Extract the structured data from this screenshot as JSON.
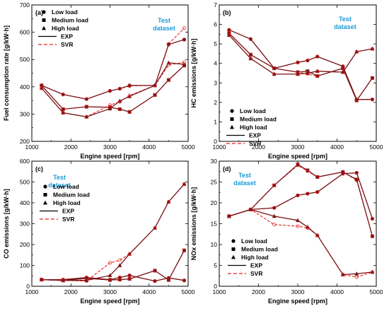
{
  "chart_data": [
    {
      "type": "line",
      "panel": "(a)",
      "annotation": [
        "Test",
        "dataset"
      ],
      "xlabel": "Engine speed [rpm]",
      "ylabel": "Fuel consumption rate [g/kW·h]",
      "xlim": [
        1000,
        5000
      ],
      "ylim": [
        200,
        700
      ],
      "xticks": [
        1000,
        2000,
        3000,
        4000,
        5000
      ],
      "yticks": [
        200,
        300,
        400,
        500,
        600,
        700
      ],
      "legend_position": "top-left",
      "x": [
        1250,
        1800,
        2400,
        3000,
        3250,
        3500,
        4150,
        4500,
        4900
      ],
      "series": [
        {
          "name": "Low load",
          "marker": "circle",
          "exp": [
            405,
            372,
            355,
            385,
            393,
            405,
            405,
            555,
            573
          ],
          "svr": [
            405,
            372,
            355,
            385,
            393,
            403,
            405,
            557,
            615
          ]
        },
        {
          "name": "Medium load",
          "marker": "square",
          "exp": [
            405,
            318,
            327,
            325,
            318,
            308,
            370,
            425,
            478
          ],
          "svr": [
            405,
            318,
            327,
            325,
            318,
            308,
            370,
            425,
            478
          ]
        },
        {
          "name": "High load",
          "marker": "triangle",
          "exp": [
            395,
            305,
            290,
            320,
            348,
            365,
            405,
            488,
            482
          ],
          "svr": [
            395,
            305,
            290,
            333,
            345,
            368,
            405,
            480,
            490
          ]
        }
      ]
    },
    {
      "type": "line",
      "panel": "(b)",
      "annotation": [
        "Test",
        "dataset"
      ],
      "xlabel": "Engine speed [rpm]",
      "ylabel": "HC emissions [g/kW·h]",
      "xlim": [
        1000,
        5000
      ],
      "ylim": [
        0,
        7
      ],
      "xticks": [
        1000,
        2000,
        3000,
        4000,
        5000
      ],
      "yticks": [
        0,
        1,
        2,
        3,
        4,
        5,
        6,
        7
      ],
      "legend_position": "bottom-left",
      "x": [
        1250,
        1800,
        2400,
        3000,
        3250,
        3500,
        4150,
        4500,
        4900
      ],
      "series": [
        {
          "name": "Low load",
          "marker": "circle",
          "exp": [
            5.72,
            5.25,
            3.75,
            4.05,
            4.15,
            4.35,
            3.85,
            2.15,
            2.15
          ],
          "svr": [
            5.72,
            5.25,
            3.75,
            4.05,
            4.15,
            4.35,
            3.85,
            2.15,
            2.15
          ]
        },
        {
          "name": "Medium load",
          "marker": "square",
          "exp": [
            5.55,
            4.45,
            3.75,
            3.55,
            3.6,
            3.35,
            3.75,
            2.1,
            3.25
          ],
          "svr": [
            5.55,
            4.45,
            3.75,
            3.55,
            3.45,
            3.35,
            3.75,
            2.1,
            3.25
          ]
        },
        {
          "name": "High load",
          "marker": "triangle",
          "exp": [
            5.45,
            4.25,
            3.45,
            3.45,
            3.5,
            3.6,
            3.55,
            4.6,
            4.75
          ],
          "svr": [
            5.45,
            4.25,
            3.45,
            3.45,
            3.5,
            3.6,
            3.55,
            4.6,
            4.75
          ]
        }
      ]
    },
    {
      "type": "line",
      "panel": "(c)",
      "annotation": [
        "Test",
        "dataset"
      ],
      "xlabel": "Engine speed [rpm]",
      "ylabel": "CO emissions [g/kW·h]",
      "xlim": [
        1000,
        5000
      ],
      "ylim": [
        0,
        600
      ],
      "xticks": [
        1000,
        2000,
        3000,
        4000,
        5000
      ],
      "yticks": [
        0,
        100,
        200,
        300,
        400,
        500,
        600
      ],
      "legend_position": "middle-left",
      "x": [
        1250,
        1800,
        2400,
        3000,
        3250,
        3500,
        4150,
        4500,
        4900
      ],
      "series": [
        {
          "name": "Low load",
          "marker": "circle",
          "exp": [
            32,
            32,
            42,
            32,
            42,
            52,
            25,
            40,
            28
          ],
          "svr": [
            32,
            32,
            42,
            32,
            42,
            52,
            25,
            40,
            28
          ]
        },
        {
          "name": "Medium load",
          "marker": "square",
          "exp": [
            32,
            28,
            38,
            30,
            32,
            35,
            75,
            30,
            172
          ],
          "svr": [
            32,
            28,
            38,
            30,
            32,
            35,
            75,
            30,
            172
          ]
        },
        {
          "name": "High load",
          "marker": "triangle",
          "exp": [
            32,
            28,
            28,
            52,
            100,
            155,
            280,
            405,
            490
          ],
          "svr": [
            32,
            28,
            25,
            112,
            125,
            155,
            280,
            405,
            490
          ]
        }
      ]
    },
    {
      "type": "line",
      "panel": "(d)",
      "annotation": [
        "Test",
        "dataset"
      ],
      "xlabel": "Engine speed [rpm]",
      "ylabel": "NOx emissions [g/kW·h]",
      "xlim": [
        1000,
        5000
      ],
      "ylim": [
        0,
        30
      ],
      "xticks": [
        1000,
        2000,
        3000,
        4000,
        5000
      ],
      "yticks": [
        0,
        5,
        10,
        15,
        20,
        25,
        30
      ],
      "legend_position": "bottom-left",
      "x": [
        1250,
        1800,
        2400,
        3000,
        3250,
        3500,
        4150,
        4500,
        4900
      ],
      "series": [
        {
          "name": "Low load",
          "marker": "circle",
          "exp": [
            16.8,
            18.4,
            18.8,
            21.8,
            22.2,
            22.6,
            27.0,
            27.2,
            16.2
          ],
          "svr": [
            16.8,
            18.4,
            18.8,
            21.8,
            22.2,
            22.6,
            27.0,
            27.2,
            16.2
          ]
        },
        {
          "name": "Medium load",
          "marker": "square",
          "exp": [
            16.8,
            18.4,
            24.2,
            29.2,
            27.8,
            26.2,
            27.4,
            25.6,
            12.0
          ],
          "svr": [
            16.8,
            18.4,
            24.2,
            29.0,
            27.6,
            26.2,
            27.4,
            25.4,
            12.0
          ]
        },
        {
          "name": "High load",
          "marker": "triangle",
          "exp": [
            16.8,
            18.4,
            16.8,
            15.8,
            14.2,
            12.2,
            2.8,
            3.0,
            3.4
          ],
          "svr": [
            16.8,
            18.4,
            14.8,
            14.4,
            14.0,
            12.2,
            2.8,
            2.2,
            3.4
          ]
        }
      ]
    }
  ],
  "legend": {
    "series": [
      "Low load",
      "Medium load",
      "High load"
    ],
    "exp_label": "EXP",
    "svr_label": "SVR"
  },
  "colors": {
    "exp": "#000000",
    "svr": "#e8231f",
    "series_line": "#7a1418",
    "annotation": "#1a9ad6"
  }
}
